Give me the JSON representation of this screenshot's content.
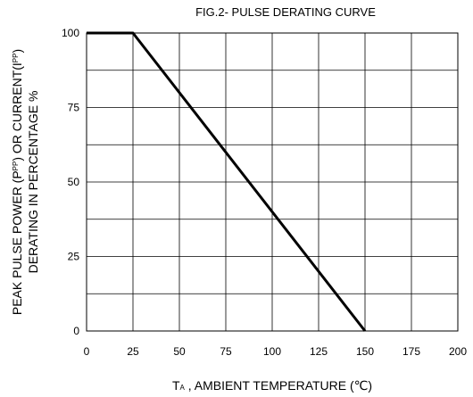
{
  "chart_data": {
    "type": "line",
    "title": "FIG.2- PULSE DERATING CURVE",
    "xlabel": {
      "prefix": "T",
      "sub": "A",
      "rest": " , AMBIENT TEMPERATURE (℃)"
    },
    "ylabel": {
      "line1_a": "PEAK PULSE POWER (P",
      "line1_sub": "PP",
      "line1_b": ") OR CURRENT(I",
      "line1_sub2": "PP",
      "line1_c": ")",
      "line2": "DERATING IN PERCENTAGE %"
    },
    "xlim": [
      0,
      200
    ],
    "ylim": [
      0,
      100
    ],
    "xticks": [
      "0",
      "25",
      "50",
      "75",
      "100",
      "125",
      "150",
      "175",
      "200"
    ],
    "yticks": [
      "0",
      "25",
      "50",
      "75",
      "100"
    ],
    "grid": true,
    "series": [
      {
        "x": [
          0,
          25,
          150
        ],
        "y": [
          100,
          100,
          0
        ]
      }
    ]
  }
}
